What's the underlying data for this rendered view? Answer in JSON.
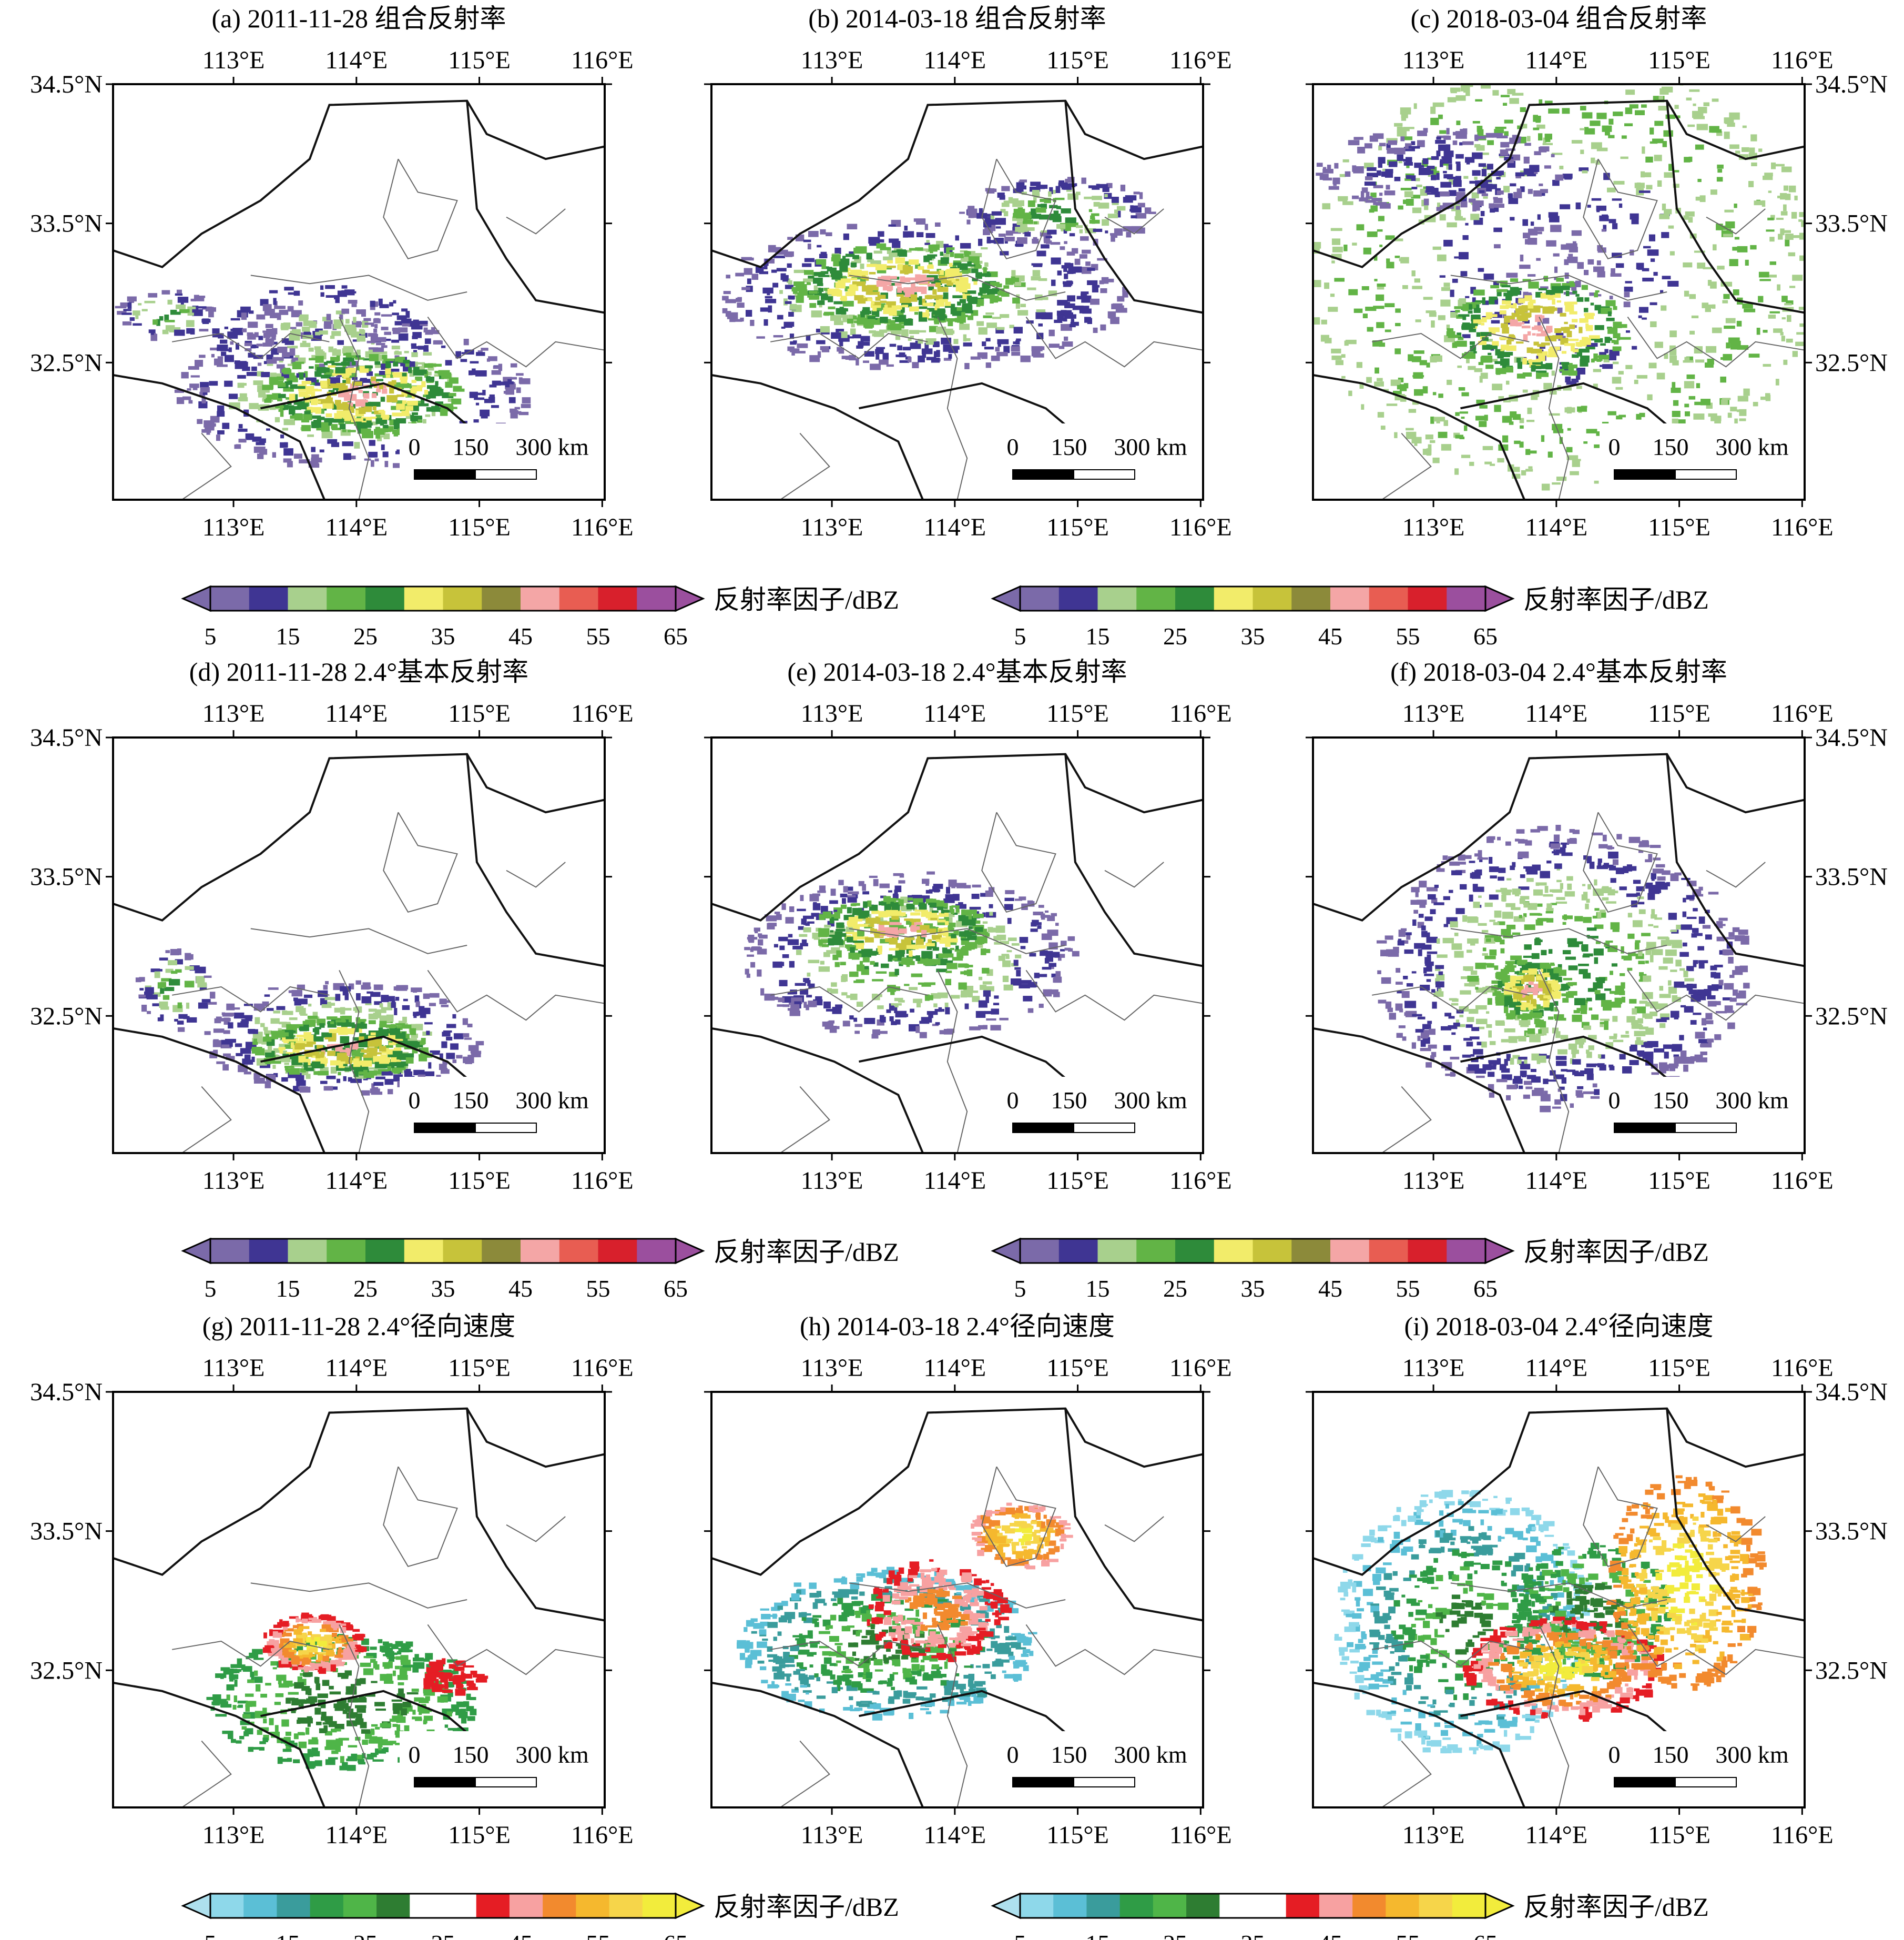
{
  "figure": {
    "lon_ticks": [
      "113°E",
      "114°E",
      "115°E",
      "116°E"
    ],
    "lat_ticks": [
      "34.5°N",
      "33.5°N",
      "32.5°N"
    ],
    "scale_bar": {
      "labels": [
        "0",
        "150",
        "300 km"
      ]
    },
    "panels": [
      {
        "id": "a",
        "title": "(a) 2011-11-28 组合反射率",
        "kind": "reflectivity",
        "pattern": "ref-a",
        "lat_left": true,
        "lat_right": false
      },
      {
        "id": "b",
        "title": "(b) 2014-03-18 组合反射率",
        "kind": "reflectivity",
        "pattern": "ref-b",
        "lat_left": false,
        "lat_right": false
      },
      {
        "id": "c",
        "title": "(c) 2018-03-04 组合反射率",
        "kind": "reflectivity",
        "pattern": "ref-c",
        "lat_left": false,
        "lat_right": true
      },
      {
        "id": "d",
        "title": "(d) 2011-11-28 2.4°基本反射率",
        "kind": "reflectivity",
        "pattern": "ref-d",
        "lat_left": true,
        "lat_right": false
      },
      {
        "id": "e",
        "title": "(e) 2014-03-18 2.4°基本反射率",
        "kind": "reflectivity",
        "pattern": "ref-e",
        "lat_left": false,
        "lat_right": false
      },
      {
        "id": "f",
        "title": "(f) 2018-03-04 2.4°基本反射率",
        "kind": "reflectivity",
        "pattern": "ref-f",
        "lat_left": false,
        "lat_right": true
      },
      {
        "id": "g",
        "title": "(g) 2011-11-28 2.4°径向速度",
        "kind": "velocity",
        "pattern": "vel-g",
        "lat_left": true,
        "lat_right": false
      },
      {
        "id": "h",
        "title": "(h) 2014-03-18 2.4°径向速度",
        "kind": "velocity",
        "pattern": "vel-h",
        "lat_left": false,
        "lat_right": false
      },
      {
        "id": "i",
        "title": "(i) 2018-03-04 2.4°径向速度",
        "kind": "velocity",
        "pattern": "vel-i",
        "lat_left": false,
        "lat_right": true
      }
    ],
    "colorbars": {
      "label": "反射率因子/dBZ",
      "tick_labels": [
        "5",
        "15",
        "25",
        "35",
        "45",
        "55",
        "65"
      ],
      "reflectivity_colors": [
        "#7b6aa9",
        "#3f3593",
        "#a8d08d",
        "#62b446",
        "#2e8b3a",
        "#f2ec6a",
        "#c7c33a",
        "#8c8a3a",
        "#f4a6a6",
        "#e85d52",
        "#d8202c",
        "#9b4f9e"
      ],
      "reflectivity_under": "#7b6aa9",
      "reflectivity_over": "#9b4f9e",
      "velocity_colors": [
        "#8ed8ea",
        "#5bbfd6",
        "#3a9c9c",
        "#2f9c46",
        "#4fb548",
        "#2e7d32",
        "#ffffff",
        "#ffffff",
        "#e51d24",
        "#f7a1a1",
        "#f28a2e",
        "#f5b82e",
        "#f6d54a",
        "#f2ec3c"
      ],
      "velocity_under": "#aee0ee",
      "velocity_over": "#f2ec3c"
    }
  }
}
